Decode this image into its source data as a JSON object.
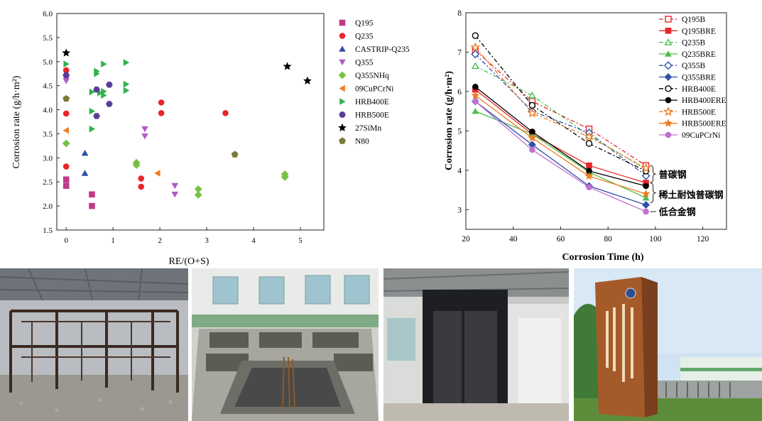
{
  "chart_data": [
    {
      "type": "scatter",
      "title": "",
      "xlabel": "RE/(O+S)",
      "ylabel": "Corrosion rate (g/h·m²)",
      "xlim": [
        -0.2,
        5.5
      ],
      "ylim": [
        1.5,
        6.0
      ],
      "xticks": [
        "0",
        "1",
        "2",
        "3",
        "4",
        "5"
      ],
      "yticks": [
        "1.5",
        "2.0",
        "2.5",
        "3.0",
        "3.5",
        "4.0",
        "4.5",
        "5.0",
        "5.5",
        "6.0"
      ],
      "grid": false,
      "legend_position": "right",
      "series": [
        {
          "name": "Q195",
          "marker": "square",
          "color": "#c0398a",
          "points": [
            [
              0.0,
              2.42
            ],
            [
              0.0,
              2.55
            ],
            [
              0.55,
              2.24
            ],
            [
              0.55,
              2.0
            ]
          ]
        },
        {
          "name": "Q235",
          "marker": "circle",
          "color": "#e8262b",
          "points": [
            [
              0.0,
              4.82
            ],
            [
              0.0,
              3.92
            ],
            [
              0.0,
              2.82
            ],
            [
              1.6,
              2.57
            ],
            [
              1.6,
              2.4
            ],
            [
              2.03,
              4.15
            ],
            [
              2.03,
              3.93
            ],
            [
              3.4,
              3.93
            ]
          ]
        },
        {
          "name": "CASTRIP-Q235",
          "marker": "triangle-up",
          "color": "#2f4fa8",
          "points": [
            [
              0.4,
              3.1
            ],
            [
              0.4,
              2.68
            ]
          ]
        },
        {
          "name": "Q355",
          "marker": "triangle-down",
          "color": "#b05bc4",
          "points": [
            [
              0.0,
              4.65
            ],
            [
              0.0,
              4.6
            ],
            [
              1.68,
              3.6
            ],
            [
              1.68,
              3.45
            ],
            [
              2.32,
              2.42
            ],
            [
              2.32,
              2.24
            ]
          ]
        },
        {
          "name": "Q355NHq",
          "marker": "diamond",
          "color": "#7ac143",
          "points": [
            [
              0.0,
              3.3
            ],
            [
              1.5,
              2.9
            ],
            [
              1.5,
              2.85
            ],
            [
              2.82,
              2.35
            ],
            [
              2.82,
              2.23
            ],
            [
              4.67,
              2.66
            ],
            [
              4.67,
              2.6
            ]
          ]
        },
        {
          "name": "09CuPCrNi",
          "marker": "triangle-left",
          "color": "#f07c22",
          "points": [
            [
              0.0,
              3.57
            ],
            [
              1.95,
              2.68
            ]
          ]
        },
        {
          "name": "HRB400E",
          "marker": "triangle-right",
          "color": "#2fb34a",
          "points": [
            [
              0.0,
              4.95
            ],
            [
              0.55,
              4.37
            ],
            [
              0.55,
              3.97
            ],
            [
              0.55,
              3.6
            ],
            [
              0.65,
              4.8
            ],
            [
              0.65,
              4.75
            ],
            [
              0.72,
              4.35
            ],
            [
              0.8,
              4.95
            ],
            [
              0.8,
              4.38
            ],
            [
              0.8,
              4.3
            ],
            [
              1.28,
              4.98
            ],
            [
              1.28,
              4.53
            ],
            [
              1.28,
              4.4
            ]
          ]
        },
        {
          "name": "HRB500E",
          "marker": "hexagon",
          "color": "#5a3d9a",
          "points": [
            [
              0.0,
              4.72
            ],
            [
              0.65,
              4.42
            ],
            [
              0.65,
              3.87
            ],
            [
              0.92,
              4.52
            ],
            [
              0.92,
              4.12
            ]
          ]
        },
        {
          "name": "27SiMn",
          "marker": "star",
          "color": "#000000",
          "points": [
            [
              0.0,
              5.18
            ],
            [
              4.72,
              4.9
            ],
            [
              5.15,
              4.6
            ]
          ]
        },
        {
          "name": "N80",
          "marker": "pentagon",
          "color": "#7a7a3a",
          "points": [
            [
              0.0,
              4.23
            ],
            [
              3.6,
              3.07
            ]
          ]
        }
      ]
    },
    {
      "type": "line",
      "title": "",
      "xlabel": "Corrosion Time (h)",
      "ylabel": "Corrosion rate (g/h·m²)",
      "xlim": [
        20,
        130
      ],
      "ylim": [
        2.5,
        8
      ],
      "xticks": [
        "20",
        "40",
        "60",
        "80",
        "100",
        "120"
      ],
      "yticks": [
        "3",
        "4",
        "5",
        "6",
        "7",
        "8"
      ],
      "x": [
        24,
        48,
        72,
        96
      ],
      "grid": false,
      "legend_position": "top-right",
      "series": [
        {
          "name": "Q195B",
          "color": "#e8262b",
          "dash": "6,3,2,3",
          "marker": "square-open",
          "values": [
            7.05,
            5.75,
            5.05,
            4.12
          ]
        },
        {
          "name": "Q195BRE",
          "color": "#e8262b",
          "dash": "",
          "marker": "square",
          "values": [
            6.05,
            4.92,
            4.12,
            3.68
          ]
        },
        {
          "name": "Q235B",
          "color": "#4cbf4c",
          "dash": "6,3,2,3",
          "marker": "triangle-open",
          "values": [
            6.65,
            5.9,
            4.88,
            4.03
          ]
        },
        {
          "name": "Q235BRE",
          "color": "#4cbf4c",
          "dash": "",
          "marker": "triangle",
          "values": [
            5.5,
            4.92,
            3.95,
            3.3
          ]
        },
        {
          "name": "Q355B",
          "color": "#2f4fa8",
          "dash": "6,3,2,3",
          "marker": "diamond-open",
          "values": [
            6.95,
            5.5,
            4.95,
            3.86
          ]
        },
        {
          "name": "Q355BRE",
          "color": "#2f4fa8",
          "dash": "",
          "marker": "diamond",
          "values": [
            5.75,
            4.65,
            3.6,
            3.12
          ]
        },
        {
          "name": "HRB400E",
          "color": "#000000",
          "dash": "6,3,2,3",
          "marker": "circle-open",
          "values": [
            7.42,
            5.65,
            4.68,
            3.98
          ]
        },
        {
          "name": "HRB400ERE",
          "color": "#000000",
          "dash": "",
          "marker": "circle",
          "values": [
            6.12,
            4.98,
            3.98,
            3.6
          ]
        },
        {
          "name": "HRB500E",
          "color": "#f07c22",
          "dash": "6,3,2,3",
          "marker": "star-open",
          "values": [
            7.12,
            5.45,
            4.85,
            4.05
          ]
        },
        {
          "name": "HRB500ERE",
          "color": "#f07c22",
          "dash": "",
          "marker": "star",
          "values": [
            5.9,
            4.82,
            3.85,
            3.4
          ]
        },
        {
          "name": "09CuPCrNi",
          "color": "#c070d0",
          "dash": "",
          "marker": "circle",
          "values": [
            5.75,
            4.52,
            3.57,
            2.95
          ]
        }
      ],
      "annotations": [
        "普碳钢",
        "稀土耐蚀普碳钢",
        "低合金钢"
      ]
    }
  ],
  "photos": [
    {
      "icon": "steel-frame-structure-photo"
    },
    {
      "icon": "concrete-test-pits-photo"
    },
    {
      "icon": "climate-chamber-photo"
    },
    {
      "icon": "institute-signboard-photo"
    }
  ]
}
